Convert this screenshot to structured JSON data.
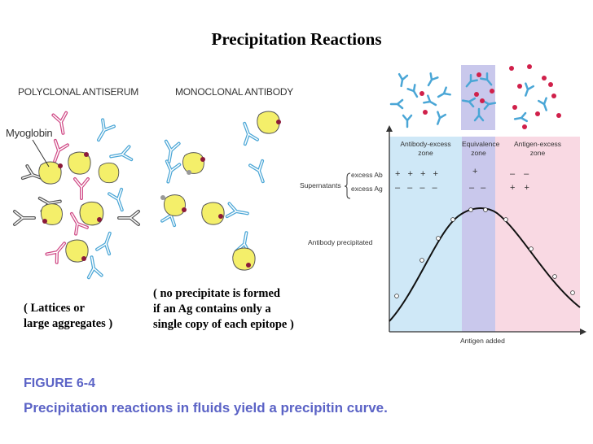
{
  "title": "Precipitation Reactions",
  "left_panel": {
    "heading": "POLYCLONAL ANTISERUM",
    "myoglobin_label": "Myoglobin",
    "caption_line1": "( Lattices or",
    "caption_line2": "large aggregates )"
  },
  "middle_panel": {
    "heading": "MONOCLONAL ANTIBODY",
    "caption_line1": "( no precipitate is formed",
    "caption_line2": "if an Ag contains only a",
    "caption_line3": "single copy of each epitope )"
  },
  "curve_panel": {
    "zones": [
      {
        "line1": "Antibody-excess",
        "line2": "zone",
        "color": "#cfe8f7"
      },
      {
        "line1": "Equivalence",
        "line2": "zone",
        "color": "#c9c8ec"
      },
      {
        "line1": "Antigen-excess",
        "line2": "zone",
        "color": "#f9d9e3"
      }
    ],
    "supernatants_label": "Supernatants",
    "excess_ab_label": "excess Ab",
    "excess_ag_label": "excess Ag",
    "ab_row": {
      "antibody_excess": "+ + + +",
      "equivalence": "+",
      "antigen_excess": "– –"
    },
    "ag_row": {
      "antibody_excess": "– – – –",
      "equivalence": "– –",
      "antigen_excess": "+ +"
    },
    "y_axis_label": "Antibody precipitated",
    "x_axis_label": "Antigen added"
  },
  "figure_number": "FIGURE 6-4",
  "figure_caption": "Precipitation reactions in fluids yield a precipitin curve.",
  "colors": {
    "antigen_fill": "#f4ef6a",
    "epitope": "#8b1a3a",
    "antibody_blue": "#4aa6d6",
    "antibody_pink": "#d04a86",
    "antibody_dark": "#555555",
    "caption_blue": "#5b63c6"
  }
}
